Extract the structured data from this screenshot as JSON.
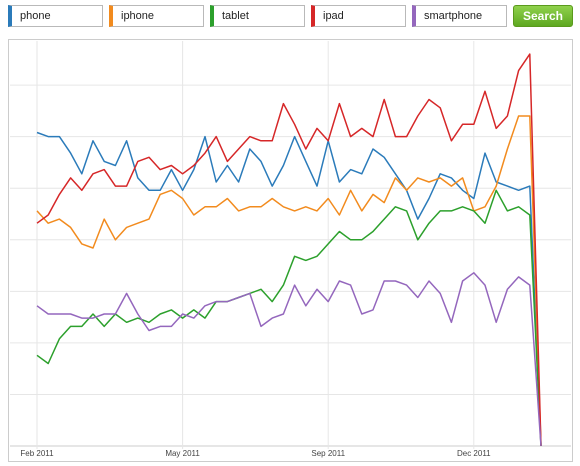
{
  "search_button": "Search",
  "chart_data": {
    "type": "line",
    "categories": [
      "Feb 2011",
      null,
      null,
      null,
      null,
      null,
      null,
      null,
      null,
      null,
      null,
      null,
      null,
      "May 2011",
      null,
      null,
      null,
      null,
      null,
      null,
      null,
      null,
      null,
      null,
      null,
      null,
      "Sep 2011",
      null,
      null,
      null,
      null,
      null,
      null,
      null,
      null,
      null,
      null,
      null,
      null,
      "Dec 2011",
      null,
      null,
      null,
      null,
      null,
      null
    ],
    "ylim": [
      0,
      100
    ],
    "yticks": [
      12.5,
      25,
      37.5,
      50,
      62.5,
      75,
      87.5
    ],
    "grid": true,
    "series": [
      {
        "name": "phone",
        "color": "#2b7bba",
        "values": [
          76,
          75,
          75,
          71,
          66,
          74,
          69,
          68,
          74,
          65,
          62,
          62,
          67,
          62,
          67,
          75,
          64,
          68,
          64,
          72,
          69,
          63,
          68,
          75,
          69,
          63,
          74,
          64,
          67,
          66,
          72,
          70,
          66,
          62,
          55,
          60,
          66,
          65,
          62,
          60,
          71,
          64,
          63,
          62,
          63,
          0
        ]
      },
      {
        "name": "iphone",
        "color": "#f28b1e",
        "values": [
          57,
          54,
          55,
          53,
          49,
          48,
          55,
          50,
          53,
          54,
          55,
          61,
          62,
          60,
          56,
          58,
          58,
          60,
          57,
          58,
          58,
          60,
          58,
          57,
          58,
          57,
          60,
          56,
          62,
          57,
          61,
          59,
          65,
          62,
          65,
          64,
          65,
          63,
          65,
          57,
          58,
          63,
          72,
          80,
          80,
          0
        ]
      },
      {
        "name": "tablet",
        "color": "#2ca02c",
        "values": [
          22,
          20,
          26,
          29,
          29,
          32,
          29,
          32,
          30,
          31,
          30,
          32,
          33,
          31,
          33,
          31,
          35,
          35,
          36,
          37,
          38,
          35,
          39,
          46,
          45,
          46,
          49,
          52,
          50,
          50,
          52,
          55,
          58,
          57,
          50,
          54,
          57,
          57,
          58,
          57,
          54,
          62,
          57,
          58,
          56,
          0
        ]
      },
      {
        "name": "ipad",
        "color": "#d62728",
        "values": [
          54,
          56,
          61,
          65,
          62,
          66,
          67,
          63,
          63,
          69,
          70,
          67,
          68,
          66,
          68,
          71,
          75,
          69,
          72,
          75,
          74,
          74,
          83,
          78,
          72,
          77,
          74,
          83,
          75,
          77,
          75,
          84,
          75,
          75,
          80,
          84,
          82,
          74,
          78,
          78,
          86,
          77,
          80,
          91,
          95,
          0
        ]
      },
      {
        "name": "smartphone",
        "color": "#9467bd",
        "values": [
          34,
          32,
          32,
          32,
          31,
          31,
          32,
          32,
          37,
          32,
          28,
          29,
          29,
          32,
          31,
          34,
          35,
          35,
          36,
          37,
          29,
          31,
          32,
          39,
          34,
          38,
          35,
          40,
          39,
          32,
          33,
          40,
          40,
          39,
          36,
          40,
          37,
          30,
          40,
          42,
          39,
          30,
          38,
          41,
          39,
          0
        ]
      }
    ]
  }
}
